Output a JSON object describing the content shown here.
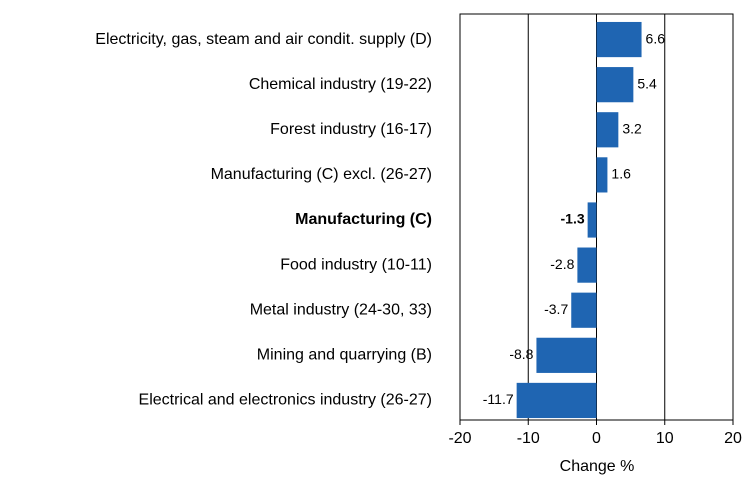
{
  "chart_data": {
    "type": "bar",
    "orientation": "horizontal",
    "categories": [
      "Electricity, gas, steam and air condit. supply (D)",
      "Chemical industry (19-22)",
      "Forest industry (16-17)",
      "Manufacturing (C) excl. (26-27)",
      "Manufacturing (C)",
      "Food industry (10-11)",
      "Metal industry (24-30, 33)",
      "Mining and quarrying (B)",
      "Electrical and electronics industry (26-27)"
    ],
    "values": [
      6.6,
      5.4,
      3.2,
      1.6,
      -1.3,
      -2.8,
      -3.7,
      -8.8,
      -11.7
    ],
    "highlight": 4,
    "color": "#1f65b2",
    "xlabel": "Change %",
    "xlim": [
      -20,
      20
    ],
    "xticks": [
      -20,
      -10,
      0,
      10,
      20
    ],
    "grid": true
  }
}
